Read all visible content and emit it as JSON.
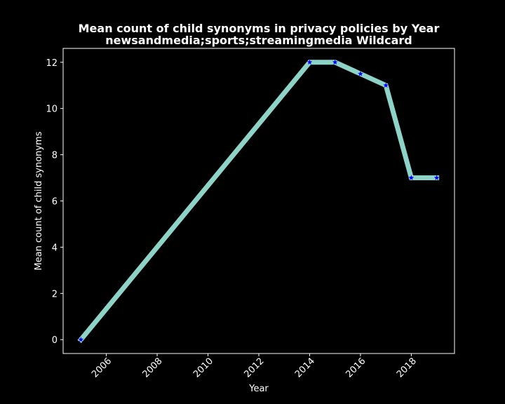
{
  "chart_data": {
    "type": "line",
    "title": "Mean count of child synonyms in privacy policies by Year",
    "subtitle": "newsandmedia;sports;streamingmedia Wildcard",
    "xlabel": "Year",
    "ylabel": "Mean count of child synonyms",
    "x": [
      2005,
      2014,
      2015,
      2016,
      2017,
      2018,
      2019
    ],
    "series": [
      {
        "values": [
          0,
          12,
          12,
          11.5,
          11,
          7,
          7
        ]
      }
    ],
    "xlim": [
      2004.3,
      2019.7
    ],
    "ylim": [
      -0.6,
      12.6
    ],
    "xticks": [
      2006,
      2008,
      2010,
      2012,
      2014,
      2016,
      2018
    ],
    "yticks": [
      0,
      2,
      4,
      6,
      8,
      10,
      12
    ],
    "grid": false,
    "legend": "none",
    "colors": {
      "background": "#000000",
      "line": "#8dd3c7",
      "marker": "#0000ff",
      "axes": "#ffffff",
      "text": "#ffffff"
    }
  }
}
